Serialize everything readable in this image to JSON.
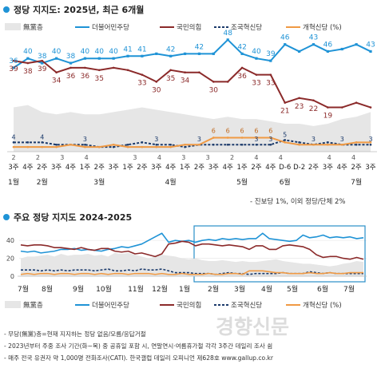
{
  "chart_data": [
    {
      "type": "line",
      "title": "정당 지지도: 2025년, 최근 6개월",
      "legend": {
        "placement": "top-right"
      },
      "ylim": [
        0,
        50
      ],
      "x": [
        "3주",
        "4주",
        "2주",
        "3주",
        "4주",
        "1주",
        "2주",
        "3주",
        "1주",
        "2주",
        "3주",
        "4주",
        "1주",
        "2주",
        "3주",
        "4주",
        "1주",
        "2주",
        "4주",
        "D-6",
        "D-2",
        "2주",
        "3주",
        "4주",
        "2주",
        "3주"
      ],
      "x_units": [
        "2",
        "2",
        "3",
        "4",
        "",
        "3",
        "4",
        "3",
        "3",
        "2",
        "4",
        "4",
        "",
        "4",
        "4"
      ],
      "month_labels": [
        "1월",
        "2월",
        "3월",
        "4월",
        "5월",
        "6월",
        "7월"
      ],
      "series": [
        {
          "name": "無黨층",
          "values": [
            19,
            20,
            17,
            16,
            17,
            16,
            16,
            17,
            18,
            19,
            18,
            17,
            16,
            15,
            14,
            15,
            14,
            14,
            13,
            12,
            12,
            11,
            12,
            14,
            15,
            17
          ]
        },
        {
          "name": "더불어민주당",
          "values": [
            36,
            40,
            38,
            40,
            38,
            40,
            40,
            40,
            41,
            41,
            42,
            41,
            42,
            42,
            42,
            48,
            42,
            40,
            39,
            46,
            43,
            46,
            43,
            44,
            46,
            43
          ]
        },
        {
          "name": "국민의힘",
          "values": [
            39,
            38,
            39,
            34,
            36,
            36,
            35,
            36,
            35,
            33,
            30,
            35,
            34,
            34,
            30,
            30,
            36,
            33,
            33,
            21,
            23,
            22,
            19,
            19,
            21,
            19
          ]
        },
        {
          "name": "조국혁신당",
          "values": [
            4,
            4,
            4,
            3,
            3,
            3,
            2,
            2,
            3,
            4,
            3,
            3,
            2,
            3,
            3,
            3,
            3,
            3,
            3,
            5,
            4,
            3,
            4,
            3,
            3,
            3
          ]
        },
        {
          "name": "개혁신당 (%)",
          "values": [
            2,
            2,
            2,
            2,
            3,
            2,
            2,
            3,
            2,
            2,
            2,
            2,
            3,
            3,
            6,
            6,
            6,
            6,
            6,
            4,
            3,
            3,
            3,
            3,
            4,
            4
          ]
        }
      ],
      "data_labels": {
        "더불어민주당": [
          "36",
          "40",
          "38",
          "40",
          "38",
          "40",
          "40",
          "40",
          "41",
          "41",
          "42",
          "42",
          "48",
          "42",
          "40",
          "39",
          "46",
          "43",
          "46",
          "43"
        ],
        "국민의힘": [
          "39",
          "38",
          "39",
          "34",
          "36",
          "36",
          "35",
          "33",
          "30",
          "35",
          "34",
          "30",
          "36",
          "33",
          "33",
          "21",
          "23",
          "22",
          "19"
        ]
      },
      "note": "- 진보당 1%, 이외 정당/단체 2%"
    },
    {
      "type": "line",
      "title": "주요 정당 지지도 2024-2025",
      "ylim": [
        0,
        50
      ],
      "y_ticks": [
        "0",
        "20",
        "40"
      ],
      "month_labels": [
        "7월",
        "8월",
        "9월",
        "10월",
        "11월",
        "12월",
        "1월",
        "2월",
        "3월",
        "4월",
        "5월",
        "6월",
        "7월"
      ],
      "series": [
        {
          "name": "無黨층",
          "values": [
            20,
            22,
            22,
            23,
            24,
            22,
            25,
            23,
            24,
            24,
            25,
            23,
            24,
            22,
            26,
            25,
            26,
            24,
            22,
            20,
            22,
            24,
            23,
            22,
            20,
            19,
            20,
            18,
            17,
            17,
            18,
            17,
            16,
            17,
            16,
            16,
            17,
            18,
            19,
            17,
            16,
            15,
            14,
            14,
            13,
            12,
            11,
            12,
            14,
            15,
            17,
            16
          ]
        },
        {
          "name": "더불어민주당",
          "values": [
            28,
            27,
            28,
            26,
            27,
            28,
            30,
            30,
            31,
            29,
            30,
            29,
            28,
            30,
            31,
            33,
            32,
            34,
            36,
            40,
            44,
            48,
            38,
            40,
            39,
            40,
            38,
            40,
            41,
            40,
            42,
            41,
            42,
            41,
            42,
            42,
            48,
            42,
            41,
            40,
            39,
            40,
            46,
            43,
            44,
            46,
            43,
            44,
            43,
            44,
            42,
            43
          ]
        },
        {
          "name": "국민의힘",
          "values": [
            35,
            34,
            35,
            35,
            34,
            32,
            32,
            31,
            30,
            32,
            30,
            29,
            31,
            31,
            28,
            27,
            28,
            25,
            26,
            24,
            22,
            25,
            36,
            37,
            39,
            38,
            34,
            36,
            36,
            35,
            34,
            35,
            34,
            33,
            30,
            34,
            34,
            30,
            30,
            34,
            35,
            34,
            33,
            30,
            24,
            21,
            22,
            22,
            20,
            19,
            21,
            19
          ]
        },
        {
          "name": "조국혁신당",
          "values": [
            7,
            7,
            7,
            6,
            7,
            6,
            7,
            6,
            7,
            7,
            7,
            6,
            7,
            8,
            6,
            6,
            7,
            6,
            8,
            7,
            7,
            8,
            6,
            4,
            4,
            4,
            3,
            3,
            3,
            2,
            3,
            4,
            3,
            3,
            2,
            3,
            3,
            3,
            3,
            4,
            3,
            3,
            3,
            5,
            4,
            3,
            4,
            3,
            3,
            3,
            3,
            3
          ]
        },
        {
          "name": "개혁신당 (%)",
          "values": [
            2,
            3,
            2,
            3,
            3,
            2,
            3,
            3,
            2,
            3,
            3,
            2,
            3,
            2,
            3,
            3,
            2,
            3,
            3,
            3,
            2,
            3,
            2,
            2,
            3,
            2,
            2,
            2,
            3,
            2,
            2,
            3,
            3,
            2,
            6,
            6,
            6,
            5,
            4,
            4,
            3,
            3,
            3,
            4,
            3,
            3,
            4,
            3,
            3,
            4,
            4,
            4
          ]
        }
      ]
    }
  ],
  "footnotes": [
    "- 무당(無黨)층=현재 지지하는 정당 없음/모름/응답거절",
    "- 2023년부터 주중 조사 기간(화~목) 중 공휴일 포함 시, 연말연시·여름휴가철 각각 3주간 데일리 조사 쉼",
    "- 매주 전국 유권자 약 1,000명 전화조사(CATI). 한국갤럽 데일리 오피니언 제628호 www.gallup.co.kr"
  ],
  "watermark": "경향신문",
  "colors": {
    "minju": "#1f93d6",
    "ppp": "#8b2a2a",
    "josc": "#1b3a6b",
    "gaehyuk": "#f09a44",
    "nonparty": "#e6e6e6",
    "accent": "#1f93d6"
  }
}
